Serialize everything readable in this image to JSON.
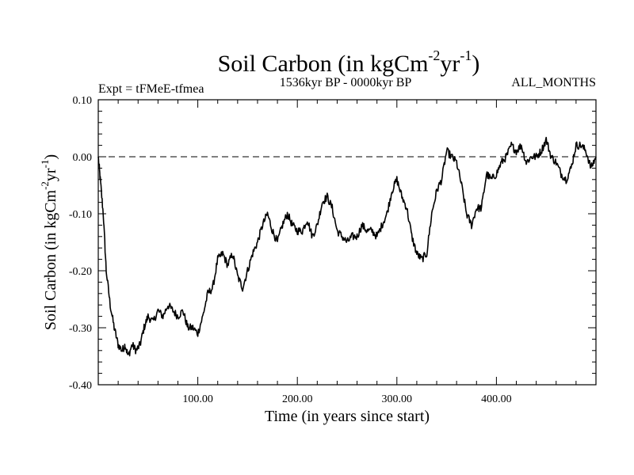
{
  "chart_data": {
    "type": "line",
    "title_main": "Soil Carbon (in kgCm",
    "title_sup1": "-2",
    "title_mid": "yr",
    "title_sup2": "-1",
    "title_end": ")",
    "subtitle_left": "Expt = tFMeE-tfmea",
    "subtitle_center": "1536kyr BP - 0000kyr BP",
    "subtitle_right": "ALL_MONTHS",
    "xlabel": "Time (in years since start)",
    "ylabel_main": "Soil Carbon (in kgCm",
    "ylabel_sup1": "-2",
    "ylabel_mid": "yr",
    "ylabel_sup2": "-1",
    "ylabel_end": ")",
    "xlim": [
      0,
      500
    ],
    "ylim": [
      -0.4,
      0.1
    ],
    "x_ticks": [
      100,
      200,
      300,
      400
    ],
    "x_tick_labels": [
      "100.00",
      "200.00",
      "300.00",
      "400.00"
    ],
    "y_ticks": [
      -0.4,
      -0.3,
      -0.2,
      -0.1,
      0.0,
      0.1
    ],
    "y_tick_labels": [
      "-0.40",
      "-0.30",
      "-0.20",
      "-0.10",
      "0.00",
      "0.10"
    ],
    "reference_line": 0.0,
    "series": [
      {
        "name": "Soil Carbon",
        "x": [
          0,
          2,
          5,
          8,
          12,
          16,
          20,
          24,
          27,
          30,
          34,
          38,
          42,
          46,
          50,
          55,
          60,
          65,
          70,
          75,
          80,
          85,
          90,
          95,
          100,
          105,
          110,
          115,
          120,
          125,
          130,
          135,
          140,
          145,
          150,
          155,
          160,
          165,
          170,
          175,
          180,
          185,
          190,
          195,
          200,
          205,
          210,
          215,
          220,
          225,
          230,
          235,
          240,
          245,
          250,
          255,
          260,
          265,
          270,
          275,
          280,
          285,
          290,
          295,
          300,
          305,
          310,
          315,
          320,
          325,
          330,
          335,
          340,
          345,
          350,
          355,
          360,
          365,
          370,
          375,
          380,
          385,
          390,
          395,
          400,
          405,
          410,
          415,
          420,
          425,
          430,
          435,
          440,
          445,
          450,
          455,
          460,
          465,
          470,
          475,
          480,
          485,
          490,
          495,
          500
        ],
        "y": [
          0.0,
          -0.04,
          -0.1,
          -0.2,
          -0.26,
          -0.3,
          -0.33,
          -0.34,
          -0.33,
          -0.35,
          -0.33,
          -0.34,
          -0.33,
          -0.3,
          -0.28,
          -0.29,
          -0.27,
          -0.28,
          -0.26,
          -0.27,
          -0.28,
          -0.27,
          -0.3,
          -0.3,
          -0.31,
          -0.28,
          -0.24,
          -0.23,
          -0.18,
          -0.17,
          -0.19,
          -0.17,
          -0.21,
          -0.23,
          -0.2,
          -0.17,
          -0.15,
          -0.12,
          -0.1,
          -0.13,
          -0.15,
          -0.12,
          -0.1,
          -0.12,
          -0.13,
          -0.13,
          -0.11,
          -0.14,
          -0.12,
          -0.08,
          -0.07,
          -0.09,
          -0.13,
          -0.14,
          -0.15,
          -0.14,
          -0.14,
          -0.12,
          -0.13,
          -0.13,
          -0.14,
          -0.12,
          -0.1,
          -0.06,
          -0.04,
          -0.07,
          -0.09,
          -0.14,
          -0.17,
          -0.18,
          -0.17,
          -0.1,
          -0.06,
          -0.04,
          0.01,
          0.0,
          -0.01,
          -0.05,
          -0.1,
          -0.12,
          -0.09,
          -0.09,
          -0.03,
          -0.04,
          -0.03,
          -0.01,
          0.0,
          0.02,
          0.01,
          0.02,
          -0.01,
          0.0,
          0.0,
          0.01,
          0.03,
          0.0,
          -0.01,
          -0.03,
          -0.04,
          -0.02,
          0.02,
          0.02,
          0.01,
          -0.02,
          0.0
        ]
      }
    ]
  }
}
